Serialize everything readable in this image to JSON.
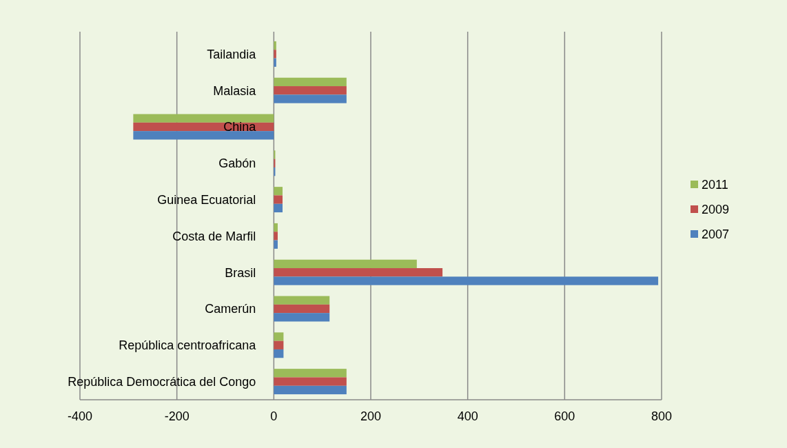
{
  "chart_data": {
    "type": "bar",
    "orientation": "horizontal",
    "categories": [
      "Tailandia",
      "Malasia",
      "China",
      "Gabón",
      "Guinea Ecuatorial",
      "Costa de Marfil",
      "Brasil",
      "Camerún",
      "República centroafricana",
      "República Democrática del Congo"
    ],
    "series": [
      {
        "name": "2011",
        "color": "#9bbb59",
        "values": [
          5,
          150,
          -290,
          3,
          18,
          8,
          295,
          115,
          20,
          150
        ]
      },
      {
        "name": "2009",
        "color": "#c0504d",
        "values": [
          5,
          150,
          -290,
          3,
          18,
          8,
          348,
          115,
          20,
          150
        ]
      },
      {
        "name": "2007",
        "color": "#4f81bd",
        "values": [
          5,
          150,
          -290,
          3,
          18,
          8,
          793,
          115,
          20,
          150
        ]
      }
    ],
    "xlim": [
      -400,
      800
    ],
    "xticks": [
      -400,
      -200,
      0,
      200,
      400,
      600,
      800
    ],
    "grid": "x",
    "legend": "right"
  }
}
